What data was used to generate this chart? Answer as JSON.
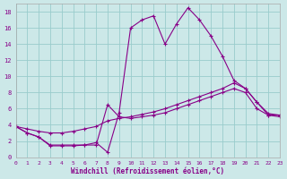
{
  "bg_color": "#cce8e8",
  "grid_color": "#99cccc",
  "line_color": "#880088",
  "xlim": [
    0,
    23
  ],
  "ylim": [
    0,
    19
  ],
  "xticks": [
    0,
    1,
    2,
    3,
    4,
    5,
    6,
    7,
    8,
    9,
    10,
    11,
    12,
    13,
    14,
    15,
    16,
    17,
    18,
    19,
    20,
    21,
    22,
    23
  ],
  "yticks": [
    0,
    2,
    4,
    6,
    8,
    10,
    12,
    14,
    16,
    18
  ],
  "xlabel": "Windchill (Refroidissement éolien,°C)",
  "curve1_x": [
    0,
    1,
    2,
    3,
    4,
    5,
    6,
    7,
    8,
    9,
    10,
    11,
    12,
    13,
    14,
    15,
    16,
    17,
    18,
    19,
    20,
    21,
    22,
    23
  ],
  "curve1_y": [
    3.8,
    3.0,
    2.5,
    1.4,
    1.4,
    1.4,
    1.5,
    1.8,
    0.6,
    5.5,
    16.0,
    17.0,
    17.5,
    14.0,
    16.5,
    18.5,
    17.0,
    15.0,
    12.5,
    9.5,
    8.5,
    6.8,
    5.2,
    5.2
  ],
  "curve2_x": [
    0,
    1,
    2,
    3,
    4,
    5,
    6,
    7,
    8,
    9,
    10,
    11,
    12,
    13,
    14,
    15,
    16,
    17,
    18,
    19,
    20,
    21,
    22,
    23
  ],
  "curve2_y": [
    3.8,
    3.5,
    3.2,
    3.0,
    3.0,
    3.2,
    3.5,
    3.8,
    4.5,
    4.8,
    5.0,
    5.3,
    5.6,
    6.0,
    6.5,
    7.0,
    7.5,
    8.0,
    8.5,
    9.2,
    8.5,
    6.8,
    5.4,
    5.2
  ],
  "curve3_x": [
    0,
    1,
    2,
    3,
    4,
    5,
    6,
    7,
    8,
    9,
    10,
    11,
    12,
    13,
    14,
    15,
    16,
    17,
    18,
    19,
    20,
    21,
    22,
    23
  ],
  "curve3_y": [
    3.8,
    3.0,
    2.5,
    1.5,
    1.5,
    1.5,
    1.5,
    1.5,
    6.5,
    5.0,
    4.8,
    5.0,
    5.2,
    5.5,
    6.0,
    6.5,
    7.0,
    7.5,
    8.0,
    8.5,
    8.0,
    6.0,
    5.2,
    5.0
  ]
}
